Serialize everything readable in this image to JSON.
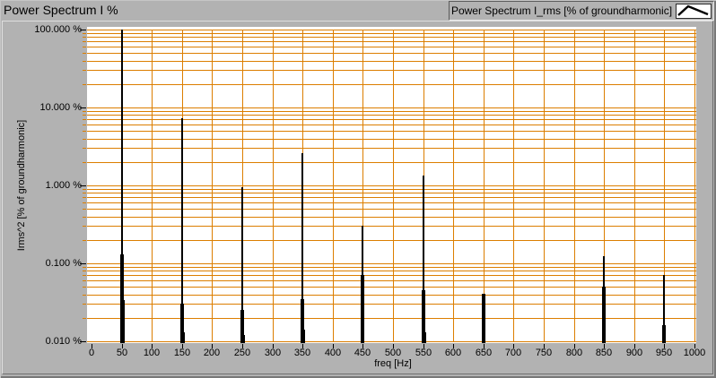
{
  "window": {
    "title": "Power Spectrum I %"
  },
  "legend": {
    "label": "Power Spectrum I_rms [% of groundharmonic]",
    "glyph_icon": "plot-line-sample"
  },
  "chart_data": {
    "type": "bar",
    "title": "Power Spectrum I %",
    "xlabel": "freq [Hz]",
    "ylabel": "Irms^2 [% of groundharmonic]",
    "x_axis": {
      "min": 0,
      "max": 1000,
      "tick_step": 50,
      "tick_labels": [
        "0",
        "50",
        "100",
        "150",
        "200",
        "250",
        "300",
        "350",
        "400",
        "450",
        "500",
        "550",
        "600",
        "650",
        "700",
        "750",
        "800",
        "850",
        "900",
        "950",
        "1000"
      ]
    },
    "y_axis": {
      "scale": "log",
      "min": 0.01,
      "max": 100,
      "tick_values": [
        100,
        10,
        1,
        0.1,
        0.01
      ],
      "tick_labels": [
        "100.000 %",
        "10.000 %",
        "1.000 %",
        "0.100 %",
        "0.010 %"
      ],
      "minor_gridlines": true
    },
    "grid": {
      "color": "#DC7E00",
      "vertical_every_hz": 50,
      "on": true
    },
    "legend_position": "top-right",
    "series": [
      {
        "name": "Power Spectrum I_rms [% of groundharmonic]",
        "color": "#000000",
        "style": "vertical-bars"
      }
    ],
    "points": [
      {
        "freq": 50,
        "value_pct": 100.0,
        "skirt3_pct": 0.13,
        "skirt5_pct": 0.034
      },
      {
        "freq": 150,
        "value_pct": 7.2,
        "skirt3_pct": 0.03,
        "skirt5_pct": 0.013
      },
      {
        "freq": 250,
        "value_pct": 0.95,
        "skirt3_pct": 0.025,
        "skirt5_pct": 0.012
      },
      {
        "freq": 350,
        "value_pct": 2.6,
        "skirt3_pct": 0.035,
        "skirt5_pct": 0.014
      },
      {
        "freq": 450,
        "value_pct": 0.3,
        "skirt3_pct": 0.07,
        "skirt5_pct": null
      },
      {
        "freq": 550,
        "value_pct": 1.35,
        "skirt3_pct": 0.045,
        "skirt5_pct": 0.013
      },
      {
        "freq": 650,
        "value_pct": 0.041,
        "skirt3_pct": 0.041,
        "skirt5_pct": null
      },
      {
        "freq": 850,
        "value_pct": 0.125,
        "skirt3_pct": 0.05,
        "skirt5_pct": null
      },
      {
        "freq": 950,
        "value_pct": 0.071,
        "skirt3_pct": 0.016,
        "skirt5_pct": null
      }
    ]
  }
}
